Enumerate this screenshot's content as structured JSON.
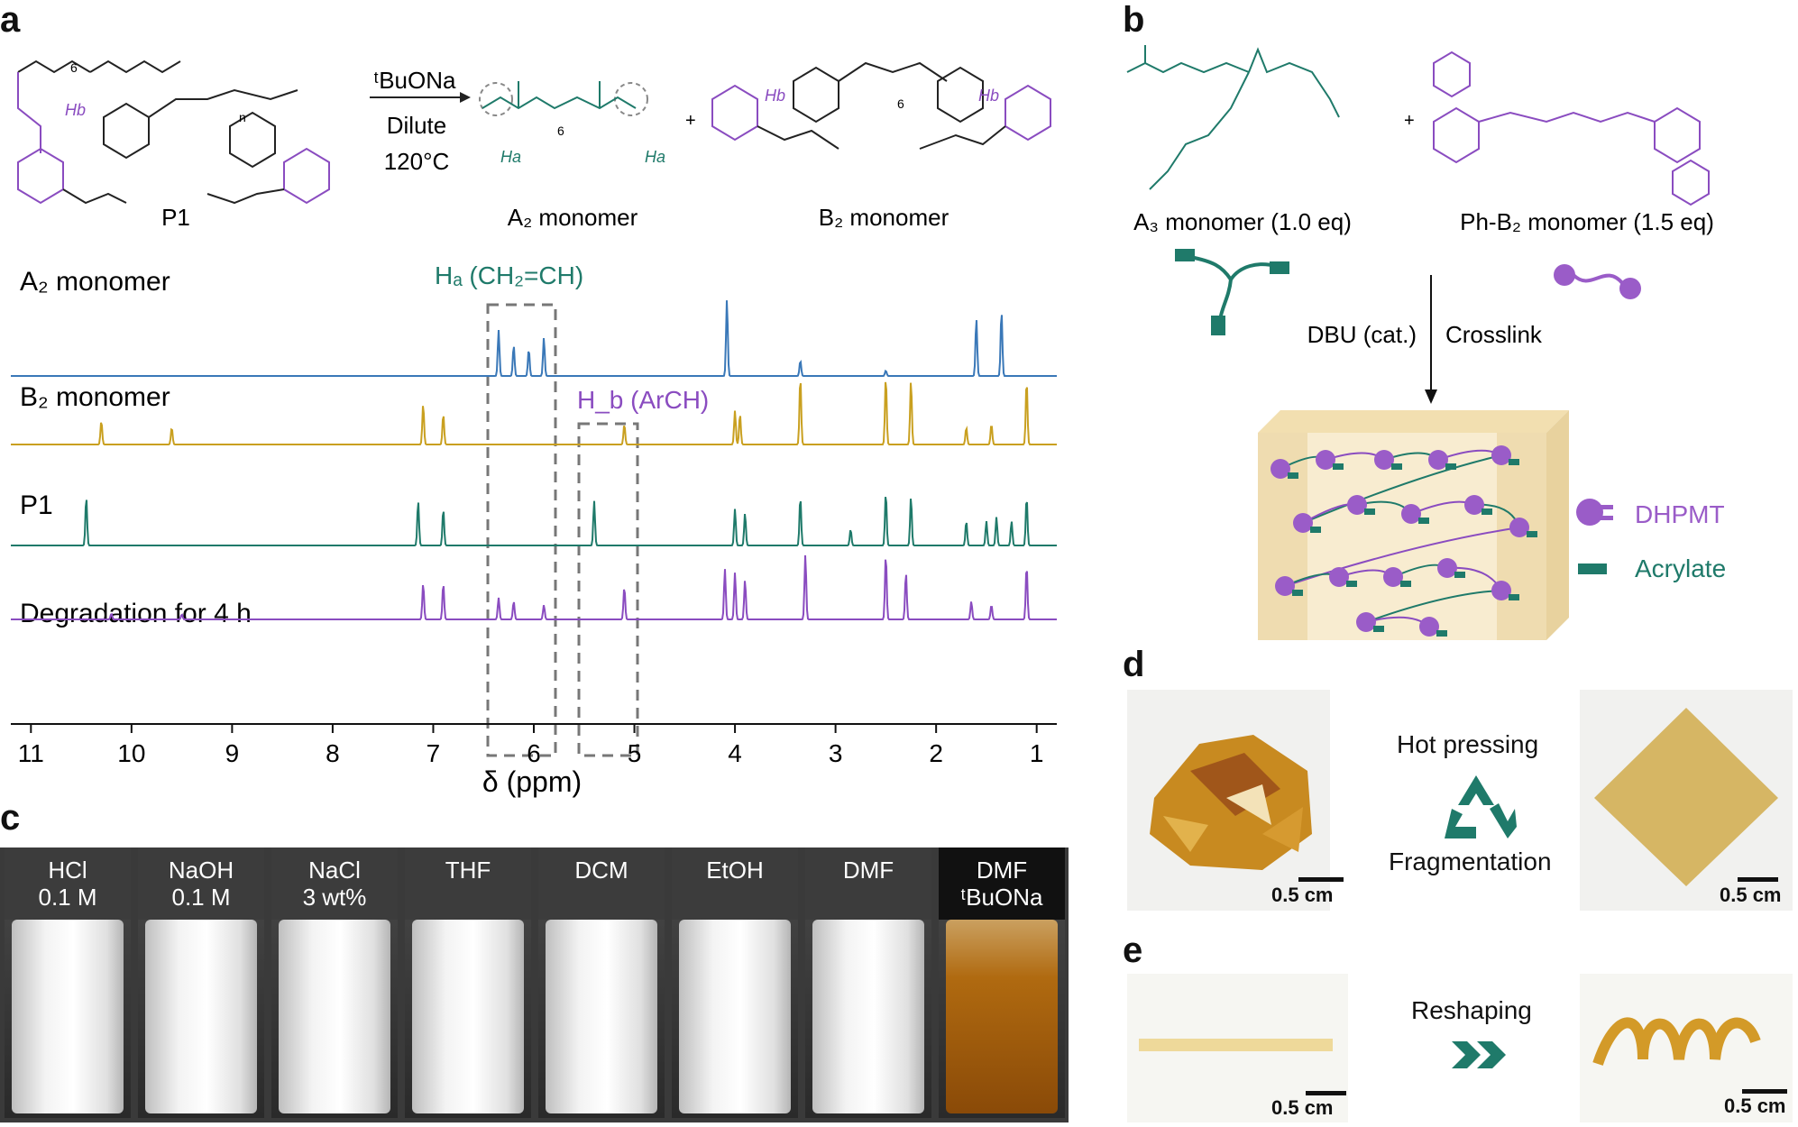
{
  "panels": {
    "a": "a",
    "b": "b",
    "c": "c",
    "d": "d",
    "e": "e"
  },
  "scheme_a": {
    "reagent_top": "ᵗBuONa",
    "reagent_mid": "Dilute",
    "reagent_bottom": "120°C",
    "plus": "+",
    "p1_label": "P1",
    "a2_label": "A₂ monomer",
    "b2_label": "B₂ monomer",
    "ha": "Ha",
    "hb": "Hb",
    "sub6": "6",
    "sub_n": "n"
  },
  "nmr": {
    "trace_labels": [
      "A₂ monomer",
      "B₂ monomer",
      "P1",
      "Degradation for 4 h"
    ],
    "ha_box_label": "Hₐ (CH₂=CH)",
    "hb_box_label": "H_b (ArCH)",
    "xlabel": "δ (ppm)",
    "x_ticks": [
      "11",
      "10",
      "9",
      "8",
      "7",
      "6",
      "5",
      "4",
      "3",
      "2",
      "1"
    ],
    "colors": {
      "a2": "#3a78b8",
      "b2": "#c9a020",
      "p1": "#1f7a6a",
      "deg": "#8a4cc0"
    }
  },
  "chart_data": {
    "type": "line",
    "title": "",
    "xlabel": "δ (ppm)",
    "ylabel": "",
    "xlim": [
      11.2,
      0.8
    ],
    "series": [
      {
        "name": "A₂ monomer",
        "peaks": [
          [
            6.35,
            0.6
          ],
          [
            6.2,
            0.4
          ],
          [
            6.05,
            0.35
          ],
          [
            5.9,
            0.5
          ],
          [
            4.08,
            1.0
          ],
          [
            3.35,
            0.2
          ],
          [
            2.5,
            0.07
          ],
          [
            1.6,
            0.75
          ],
          [
            1.35,
            0.85
          ]
        ]
      },
      {
        "name": "B₂ monomer",
        "peaks": [
          [
            10.3,
            0.35
          ],
          [
            9.6,
            0.25
          ],
          [
            7.1,
            0.6
          ],
          [
            6.9,
            0.45
          ],
          [
            5.1,
            0.3
          ],
          [
            4.0,
            0.5
          ],
          [
            3.95,
            0.45
          ],
          [
            3.35,
            1.0
          ],
          [
            2.5,
            1.0
          ],
          [
            2.25,
            0.95
          ],
          [
            1.7,
            0.25
          ],
          [
            1.45,
            0.3
          ],
          [
            1.1,
            0.95
          ]
        ]
      },
      {
        "name": "P1",
        "peaks": [
          [
            10.45,
            0.6
          ],
          [
            7.15,
            0.55
          ],
          [
            6.9,
            0.45
          ],
          [
            5.4,
            0.55
          ],
          [
            4.0,
            0.45
          ],
          [
            3.9,
            0.4
          ],
          [
            3.35,
            0.6
          ],
          [
            2.85,
            0.2
          ],
          [
            2.5,
            0.65
          ],
          [
            2.25,
            0.6
          ],
          [
            1.7,
            0.3
          ],
          [
            1.5,
            0.3
          ],
          [
            1.4,
            0.35
          ],
          [
            1.25,
            0.3
          ],
          [
            1.1,
            0.6
          ]
        ]
      },
      {
        "name": "Degradation for 4 h",
        "peaks": [
          [
            10.2,
            0.08
          ],
          [
            9.5,
            0.07
          ],
          [
            7.1,
            0.5
          ],
          [
            6.9,
            0.5
          ],
          [
            6.35,
            0.3
          ],
          [
            6.2,
            0.25
          ],
          [
            5.9,
            0.2
          ],
          [
            5.1,
            0.45
          ],
          [
            4.1,
            0.7
          ],
          [
            4.0,
            0.65
          ],
          [
            3.9,
            0.55
          ],
          [
            3.3,
            0.9
          ],
          [
            2.5,
            0.9
          ],
          [
            2.3,
            0.65
          ],
          [
            1.65,
            0.25
          ],
          [
            1.45,
            0.2
          ],
          [
            1.1,
            0.75
          ]
        ]
      }
    ]
  },
  "scheme_b": {
    "a3_label": "A₃ monomer (1.0 eq)",
    "phb2_label": "Ph-B₂ monomer (1.5 eq)",
    "plus": "+",
    "dbu": "DBU (cat.)",
    "crosslink": "Crosslink",
    "legend_dhpmt": "DHPMT",
    "legend_acrylate": "Acrylate",
    "colors": {
      "teal": "#1f7a6a",
      "purple": "#9a5cc8",
      "block": "#f6e6c2"
    }
  },
  "vials": [
    {
      "line1": "HCl",
      "line2": "0.1 M"
    },
    {
      "line1": "NaOH",
      "line2": "0.1 M"
    },
    {
      "line1": "NaCl",
      "line2": "3 wt%"
    },
    {
      "line1": "THF",
      "line2": ""
    },
    {
      "line1": "DCM",
      "line2": ""
    },
    {
      "line1": "EtOH",
      "line2": ""
    },
    {
      "line1": "DMF",
      "line2": ""
    },
    {
      "line1": "DMF",
      "line2": "ᵗBuONa"
    }
  ],
  "panel_d": {
    "top_text": "Hot pressing",
    "bottom_text": "Fragmentation",
    "scale_left": "0.5 cm",
    "scale_right": "0.5 cm",
    "recycle_icon": "recycle-icon"
  },
  "panel_e": {
    "text": "Reshaping",
    "scale_left": "0.5 cm",
    "scale_right": "0.5 cm",
    "arrow_icon": "double-chevron-icon"
  }
}
